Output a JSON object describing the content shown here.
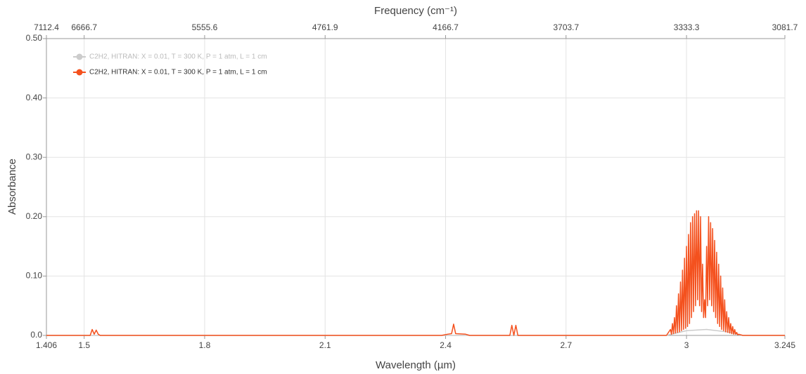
{
  "chart_data": {
    "type": "line",
    "xlabel": "Wavelength (µm)",
    "x2label": "Frequency (cm⁻¹)",
    "ylabel": "Absorbance",
    "xlim": [
      1.406,
      3.245
    ],
    "xticks": [
      1.406,
      1.5,
      1.8,
      2.1,
      2.4,
      2.7,
      3,
      3.245
    ],
    "x2ticks": [
      7112.4,
      6666.7,
      5555.6,
      4761.9,
      4166.7,
      3703.7,
      3333.3,
      3081.7
    ],
    "ylim": [
      0,
      0.5
    ],
    "yticks": [
      {
        "value": 0,
        "label": "0.0"
      },
      {
        "value": 0.1,
        "label": "0.10"
      },
      {
        "value": 0.2,
        "label": "0.20"
      },
      {
        "value": 0.3,
        "label": "0.30"
      },
      {
        "value": 0.4,
        "label": "0.40"
      },
      {
        "value": 0.5,
        "label": "0.50"
      }
    ],
    "grid": true,
    "legend": "upper left",
    "series": [
      {
        "name": "C2H2, HITRAN: X = 0.01, T = 300 K, P = 1 atm, L = 1 cm",
        "color": "#cccccc",
        "x": [
          1.406,
          2.95,
          3.0,
          3.05,
          3.1,
          3.14,
          3.245
        ],
        "values": [
          0,
          0,
          0.008,
          0.01,
          0.006,
          0,
          0
        ]
      },
      {
        "name": "C2H2, HITRAN: X = 0.01, T = 300 K, P = 1 atm, L = 1 cm",
        "color": "#f4511e",
        "x": [
          1.406,
          1.5,
          1.515,
          1.52,
          1.525,
          1.53,
          1.535,
          1.54,
          2.39,
          2.405,
          2.415,
          2.42,
          2.425,
          2.45,
          2.46,
          2.56,
          2.565,
          2.57,
          2.575,
          2.58,
          2.95,
          2.96,
          2.9625,
          2.965,
          2.9675,
          2.97,
          2.9725,
          2.975,
          2.9775,
          2.98,
          2.9825,
          2.985,
          2.9875,
          2.99,
          2.9925,
          2.995,
          2.9975,
          3.0,
          3.0025,
          3.005,
          3.0075,
          3.01,
          3.0125,
          3.015,
          3.0175,
          3.02,
          3.0225,
          3.025,
          3.0275,
          3.03,
          3.0325,
          3.035,
          3.0375,
          3.04,
          3.0425,
          3.045,
          3.0475,
          3.05,
          3.0525,
          3.055,
          3.0575,
          3.06,
          3.0625,
          3.065,
          3.0675,
          3.07,
          3.0725,
          3.075,
          3.0775,
          3.08,
          3.0825,
          3.085,
          3.0875,
          3.09,
          3.0925,
          3.095,
          3.0975,
          3.1,
          3.1025,
          3.105,
          3.1075,
          3.11,
          3.1125,
          3.115,
          3.1175,
          3.12,
          3.1225,
          3.125,
          3.1275,
          3.13,
          3.14,
          3.245
        ],
        "values": [
          0,
          0,
          0,
          0.01,
          0.002,
          0.009,
          0.002,
          0,
          0,
          0.002,
          0.003,
          0.019,
          0.003,
          0.002,
          0,
          0,
          0.017,
          0,
          0.017,
          0,
          0,
          0.01,
          0.002,
          0.02,
          0.003,
          0.03,
          0.004,
          0.05,
          0.005,
          0.07,
          0.006,
          0.09,
          0.008,
          0.11,
          0.01,
          0.13,
          0.012,
          0.15,
          0.015,
          0.17,
          0.02,
          0.19,
          0.03,
          0.2,
          0.04,
          0.205,
          0.05,
          0.21,
          0.06,
          0.21,
          0.05,
          0.2,
          0.04,
          0.12,
          0.03,
          0.06,
          0.03,
          0.15,
          0.05,
          0.2,
          0.06,
          0.19,
          0.05,
          0.18,
          0.04,
          0.16,
          0.03,
          0.14,
          0.02,
          0.12,
          0.015,
          0.1,
          0.01,
          0.08,
          0.008,
          0.06,
          0.006,
          0.04,
          0.005,
          0.03,
          0.004,
          0.02,
          0.003,
          0.015,
          0.002,
          0.01,
          0.002,
          0.005,
          0.001,
          0.002,
          0,
          0
        ]
      }
    ]
  }
}
